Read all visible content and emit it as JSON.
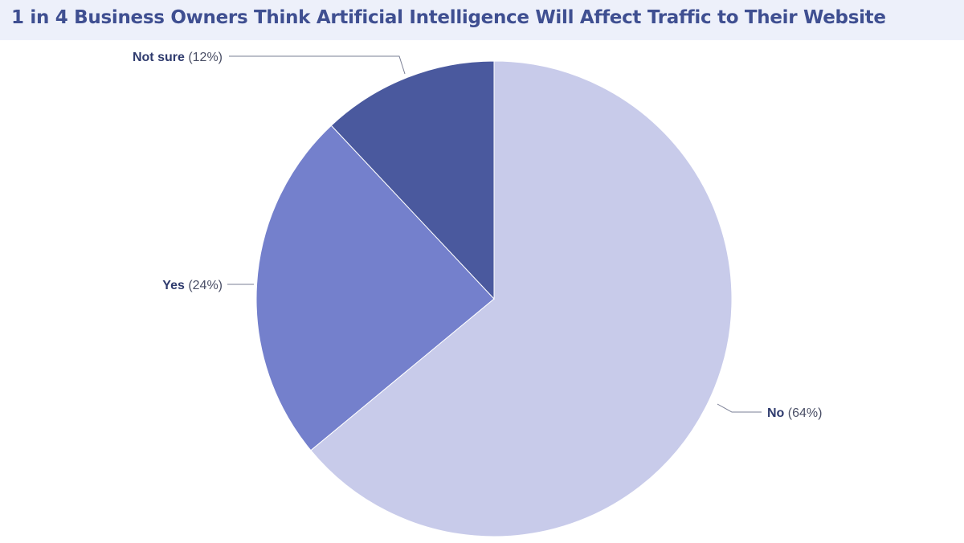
{
  "title": "1 in 4 Business Owners Think Artificial Intelligence Will Affect Traffic to Their Website",
  "colors": {
    "title": "#3f4f91",
    "title_band": "#edf0fa",
    "no": "#c8cbea",
    "yes": "#7480cc",
    "not_sure": "#4a599e",
    "leader": "#7a7f95"
  },
  "chart_data": {
    "type": "pie",
    "slices": [
      {
        "label": "No",
        "value_label": "(64%)",
        "value": 64,
        "color": "#c8cbea"
      },
      {
        "label": "Yes",
        "value_label": "(24%)",
        "value": 24,
        "color": "#7480cc"
      },
      {
        "label": "Not sure",
        "value_label": "(12%)",
        "value": 12,
        "color": "#4a599e"
      }
    ],
    "start_angle": "12 o'clock",
    "direction": "clockwise",
    "labels": "outside with leader lines"
  }
}
